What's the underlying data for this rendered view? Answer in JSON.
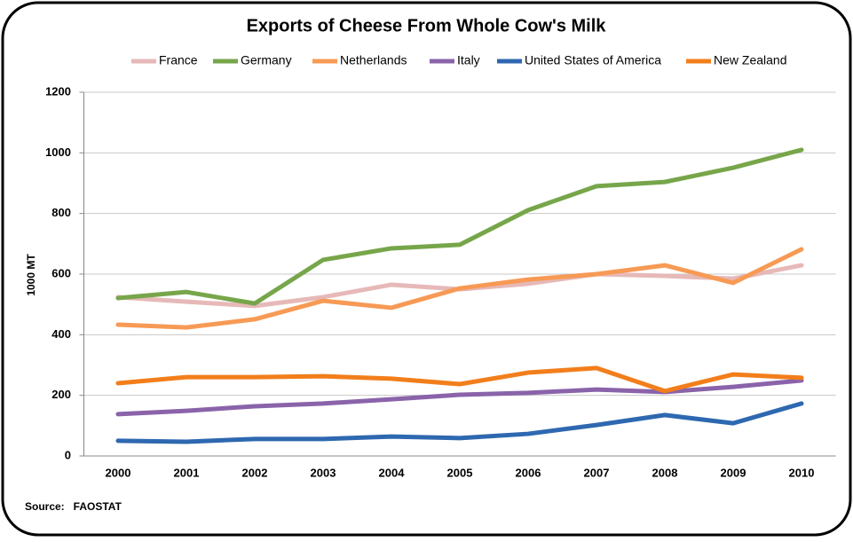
{
  "chart_data": {
    "type": "line",
    "title": "Exports of Cheese From Whole Cow's Milk",
    "y_label": "1000 MT",
    "source": "Source:   FAOSTAT",
    "categories": [
      "2000",
      "2001",
      "2002",
      "2003",
      "2004",
      "2005",
      "2006",
      "2007",
      "2008",
      "2009",
      "2010"
    ],
    "series": [
      {
        "name": "France",
        "color": "#e6b9b8",
        "values": [
          524,
          509,
          495,
          524,
          565,
          550,
          568,
          600,
          594,
          585,
          629
        ]
      },
      {
        "name": "Germany",
        "color": "#77a64a",
        "values": [
          521,
          541,
          503,
          647,
          685,
          697,
          811,
          890,
          904,
          951,
          1010
        ]
      },
      {
        "name": "Netherlands",
        "color": "#f79a55",
        "values": [
          433,
          424,
          451,
          512,
          489,
          553,
          582,
          600,
          629,
          571,
          682
        ]
      },
      {
        "name": "Italy",
        "color": "#8a63aa",
        "values": [
          138,
          149,
          164,
          173,
          187,
          202,
          208,
          219,
          211,
          228,
          249
        ]
      },
      {
        "name": "United States of America",
        "color": "#2e68b0",
        "values": [
          50,
          47,
          56,
          56,
          64,
          59,
          73,
          102,
          135,
          108,
          173
        ]
      },
      {
        "name": "New Zealand",
        "color": "#f27e1b",
        "values": [
          240,
          260,
          260,
          263,
          255,
          237,
          275,
          290,
          214,
          269,
          258
        ]
      }
    ],
    "ylim": [
      0,
      1200
    ],
    "yticks": [
      0,
      200,
      400,
      600,
      800,
      1000,
      1200
    ],
    "grid": true,
    "legend": "top"
  }
}
